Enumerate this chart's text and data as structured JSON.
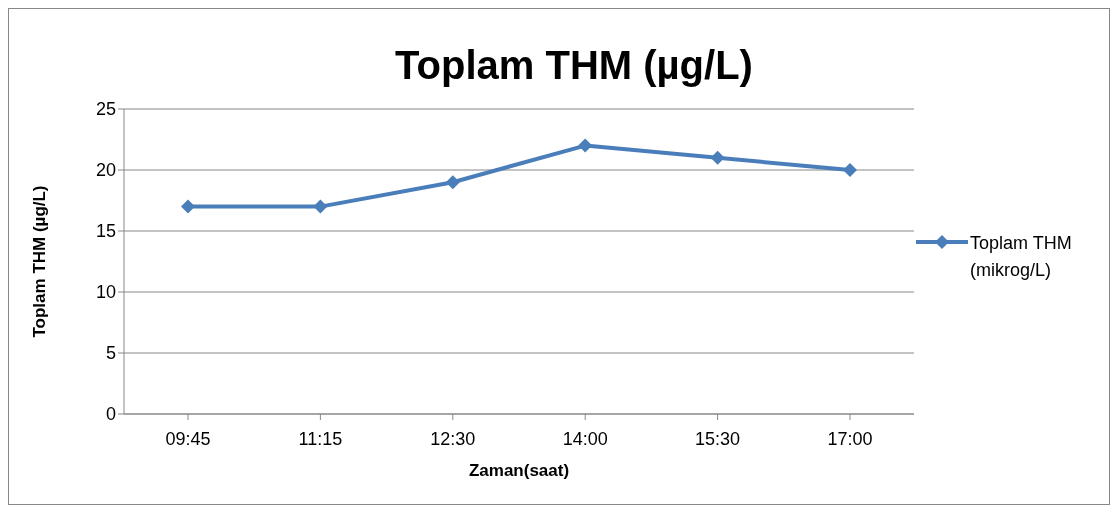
{
  "chart_data": {
    "type": "line",
    "title": "Toplam THM (µg/L)",
    "xlabel": "Zaman(saat)",
    "ylabel": "Toplam THM (µg/L)",
    "categories": [
      "09:45",
      "11:15",
      "12:30",
      "14:00",
      "15:30",
      "17:00"
    ],
    "series": [
      {
        "name": "Toplam THM (mikrog/L)",
        "color": "#4a7ebb",
        "values": [
          17,
          17,
          19,
          22,
          21,
          20
        ]
      }
    ],
    "ylim": [
      0,
      25
    ],
    "yticks": [
      0,
      5,
      10,
      15,
      20,
      25
    ],
    "grid": "y",
    "legend": "right",
    "marker": "diamond",
    "line_style": "solid"
  }
}
